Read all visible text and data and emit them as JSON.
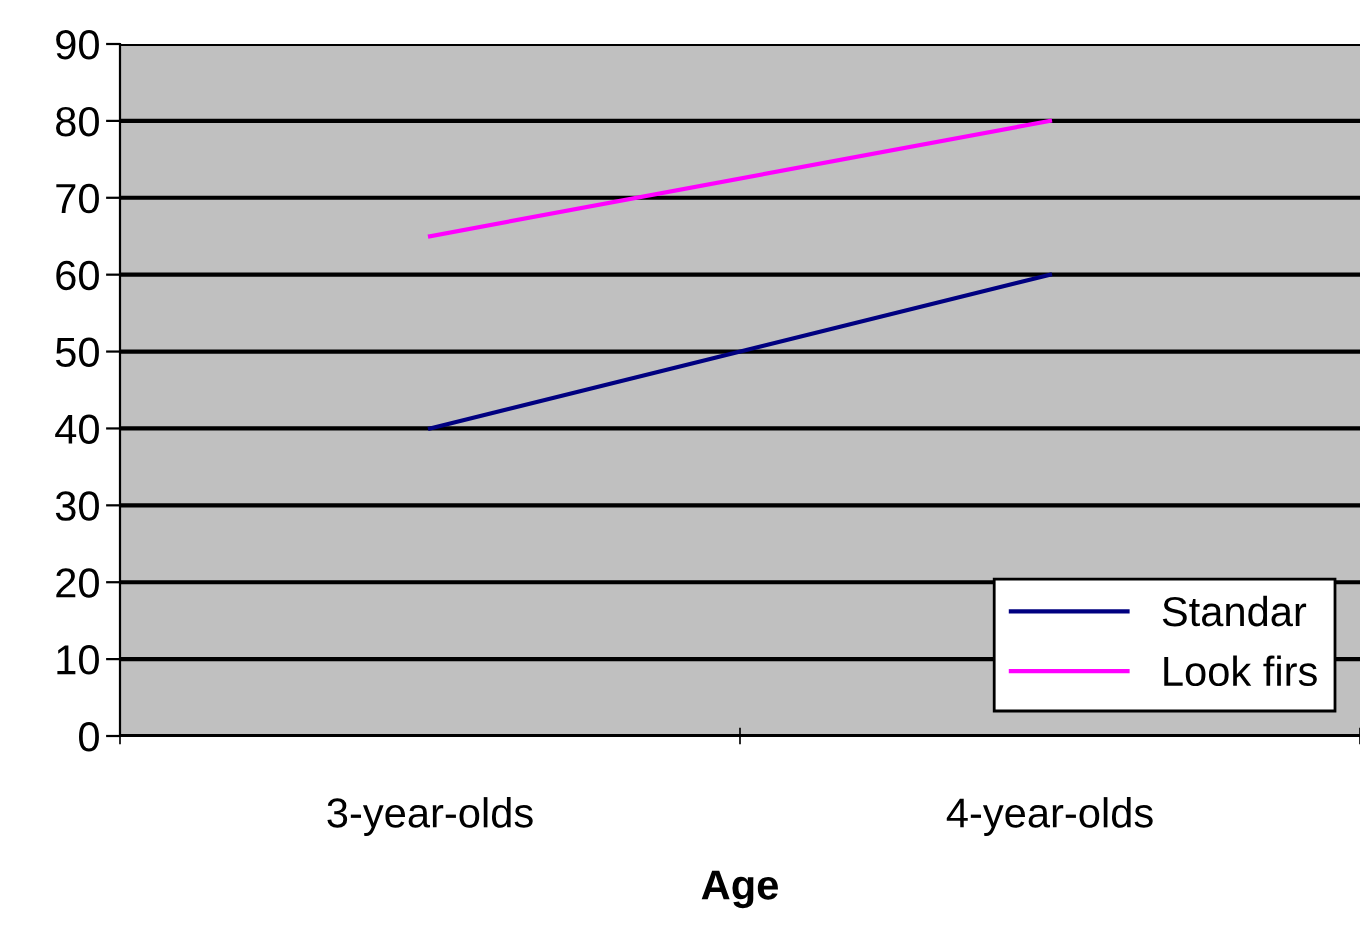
{
  "chart_data": {
    "type": "line",
    "xlabel": "Age",
    "categories": [
      "3-year-olds",
      "4-year-olds"
    ],
    "series": [
      {
        "name": "Standar",
        "color": "#000080",
        "values": [
          40,
          60
        ]
      },
      {
        "name": "Look firs",
        "color": "#ff00ff",
        "values": [
          65,
          80
        ]
      }
    ],
    "ylim": [
      0,
      90
    ],
    "yticks": [
      0,
      10,
      20,
      30,
      40,
      50,
      60,
      70,
      80,
      90
    ],
    "grid": "y",
    "legend": "bottom right",
    "marker": "none",
    "line_style": "solid"
  }
}
